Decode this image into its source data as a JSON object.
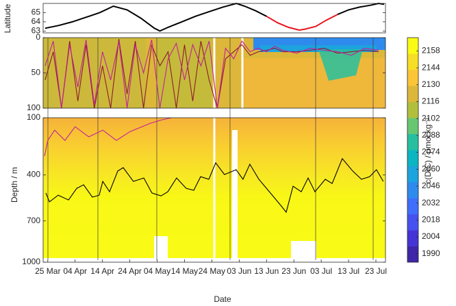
{
  "chart_data": [
    {
      "type": "line",
      "ylabel": "Latitude",
      "xlim": [
        82.3,
        207.5
      ],
      "ylim": [
        62.8,
        66
      ],
      "yticks": [
        63,
        64,
        65
      ],
      "x": [
        83,
        88,
        93,
        98,
        103,
        108,
        113,
        118,
        123,
        125,
        128,
        133,
        138,
        143,
        148,
        153,
        156,
        160,
        164,
        168,
        172,
        176,
        178,
        182,
        186,
        190,
        194,
        198,
        202,
        205,
        207
      ],
      "series": [
        {
          "color": "#000000",
          "values": [
            63.3,
            63.6,
            64.0,
            64.5,
            65.0,
            65.7,
            65.3,
            64.4,
            63.3,
            63.0,
            63.4,
            64.0,
            64.6,
            65.1,
            65.6,
            66.0,
            65.7,
            65.2,
            64.6,
            null,
            null,
            null,
            null,
            null,
            null,
            64.8,
            65.3,
            65.6,
            65.8,
            66.0,
            65.9
          ]
        },
        {
          "color": "#e8141c",
          "values": [
            null,
            null,
            null,
            null,
            null,
            null,
            null,
            null,
            null,
            null,
            null,
            null,
            null,
            null,
            null,
            null,
            null,
            null,
            64.6,
            63.9,
            63.4,
            63.1,
            63.2,
            63.5,
            64.2,
            64.8,
            null,
            null,
            null,
            null,
            null
          ]
        }
      ]
    },
    {
      "type": "line",
      "xlim": [
        82.3,
        207.5
      ],
      "ylim": [
        0,
        100
      ],
      "y_inverted": true,
      "yticks": [
        0,
        50,
        100
      ],
      "x": [
        83,
        86,
        89,
        92,
        95,
        98,
        101,
        104,
        107,
        110,
        113,
        116,
        119,
        122,
        125,
        128,
        131,
        134,
        137,
        140,
        143,
        146,
        149,
        152,
        155,
        158,
        161,
        164,
        167,
        170,
        175,
        180,
        185,
        190,
        195,
        200,
        205
      ],
      "series": [
        {
          "color": "#8b1a2e",
          "values": [
            60,
            20,
            100,
            5,
            90,
            10,
            100,
            40,
            100,
            2,
            80,
            5,
            100,
            10,
            40,
            20,
            100,
            10,
            90,
            5,
            60,
            100,
            30,
            20,
            10,
            25,
            20,
            18,
            15,
            20,
            20,
            18,
            15,
            22,
            20,
            18,
            20
          ]
        },
        {
          "color": "#c2209c",
          "values": [
            40,
            5,
            100,
            10,
            70,
            3,
            95,
            20,
            60,
            5,
            100,
            10,
            50,
            3,
            100,
            30,
            8,
            60,
            10,
            40,
            5,
            100,
            15,
            30,
            5,
            20,
            15,
            20,
            12,
            18,
            22,
            15,
            18,
            20,
            25,
            15,
            18
          ]
        }
      ]
    },
    {
      "type": "line",
      "ylabel": "Depth / m",
      "xlabel": "Date",
      "xlim": [
        82.3,
        207.5
      ],
      "ylim": [
        100,
        1000
      ],
      "y_inverted": true,
      "yscale_exponent": 0.75,
      "yticks": [
        100,
        400,
        700,
        1000
      ],
      "xticks": [
        {
          "value": 84,
          "label": "25 Mar"
        },
        {
          "value": 94,
          "label": "04 Apr"
        },
        {
          "value": 104,
          "label": "14 Apr"
        },
        {
          "value": 114,
          "label": "24 Apr"
        },
        {
          "value": 124,
          "label": "04 May"
        },
        {
          "value": 134,
          "label": "14 May"
        },
        {
          "value": 144,
          "label": "24 May"
        },
        {
          "value": 154,
          "label": "03 Jun"
        },
        {
          "value": 164,
          "label": "13 Jun"
        },
        {
          "value": 174,
          "label": "23 Jun"
        },
        {
          "value": 184,
          "label": "03 Jul"
        },
        {
          "value": 194,
          "label": "13 Jul"
        },
        {
          "value": 204,
          "label": "23 Jul"
        }
      ],
      "series": [
        {
          "color": "#000000",
          "x": [
            83.3,
            84.6,
            87.8,
            91.6,
            94.6,
            97.1,
            100.3,
            102.8,
            104.1,
            106.6,
            109.6,
            111.6,
            115.3,
            119.1,
            122.1,
            125.4,
            127.9,
            131.1,
            134.6,
            137.4,
            139.9,
            142.9,
            145.4,
            148.6,
            152.9,
            155.4,
            157.9,
            161.2,
            165.4,
            169.2,
            171.2,
            173.7,
            176.7,
            179.2,
            181.7,
            185.5,
            188.0,
            191.7,
            195.5,
            198.7,
            201.7,
            204.2,
            206.7
          ],
          "values": [
            513,
            571,
            527,
            558,
            483,
            461,
            540,
            527,
            440,
            505,
            377,
            357,
            440,
            419,
            513,
            532,
            505,
            419,
            483,
            496,
            411,
            427,
            329,
            398,
            369,
            427,
            337,
            427,
            513,
            594,
            640,
            470,
            505,
            419,
            505,
            427,
            453,
            305,
            377,
            427,
            411,
            369,
            440
          ]
        },
        {
          "color": "#c2209c",
          "x": [
            82.8,
            84.0,
            86.5,
            90.3,
            94.0,
            99.0,
            104.1,
            109.1,
            114.1,
            121.6,
            125.4,
            129.2
          ],
          "values": [
            291,
            207,
            156,
            207,
            140,
            189,
            156,
            207,
            163,
            124,
            110,
            100
          ]
        }
      ]
    },
    {
      "type": "colorbar",
      "label": "c(DIC) / μmol kg⁻¹",
      "lim": [
        1983,
        2169
      ],
      "ticks": [
        1990,
        2004,
        2018,
        2032,
        2046,
        2060,
        2074,
        2088,
        2102,
        2116,
        2130,
        2144,
        2158
      ],
      "colors": [
        "#3e26a8",
        "#4534d5",
        "#4652ef",
        "#3f6ffb",
        "#2f8aee",
        "#1da3dd",
        "#0cb5c2",
        "#27bfa0",
        "#67c672",
        "#b2bf3d",
        "#dcb73a",
        "#fac537",
        "#f6de26",
        "#f9fb15"
      ]
    }
  ]
}
